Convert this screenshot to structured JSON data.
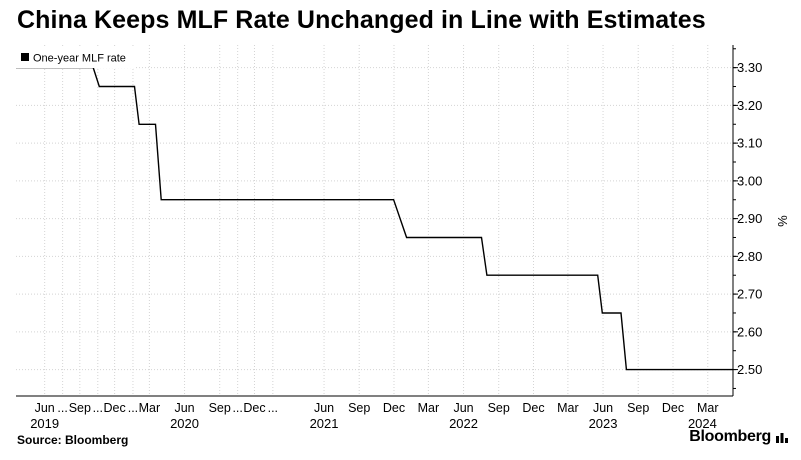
{
  "title": "China Keeps MLF Rate Unchanged in Line with Estimates",
  "source": "Source: Bloomberg",
  "brand": "Bloomberg",
  "brand_icon": "chart-bars-icon",
  "chart_data": {
    "type": "line",
    "title": "China Keeps MLF Rate Unchanged in Line with Estimates",
    "xlabel": "",
    "ylabel": "%",
    "ylim": [
      2.43,
      3.36
    ],
    "yticks": [
      2.5,
      2.6,
      2.7,
      2.8,
      2.9,
      3.0,
      3.1,
      3.2,
      3.3
    ],
    "ytick_labels": [
      "2.50",
      "2.60",
      "2.70",
      "2.80",
      "2.90",
      "3.00",
      "3.10",
      "3.20",
      "3.30"
    ],
    "xlim": [
      "2019-04-01",
      "2024-05-20"
    ],
    "grid": true,
    "legend_position": "top-left",
    "series": [
      {
        "name": "One-year MLF rate",
        "color": "#000000",
        "points": [
          [
            "2019-04-01",
            3.3
          ],
          [
            "2019-10-20",
            3.3
          ],
          [
            "2019-11-05",
            3.25
          ],
          [
            "2020-02-05",
            3.25
          ],
          [
            "2020-02-17",
            3.15
          ],
          [
            "2020-03-31",
            3.15
          ],
          [
            "2020-04-15",
            2.95
          ],
          [
            "2021-12-14",
            2.95
          ],
          [
            "2022-01-17",
            2.85
          ],
          [
            "2022-08-01",
            2.85
          ],
          [
            "2022-08-15",
            2.75
          ],
          [
            "2023-06-01",
            2.75
          ],
          [
            "2023-06-13",
            2.65
          ],
          [
            "2023-08-01",
            2.65
          ],
          [
            "2023-08-15",
            2.5
          ],
          [
            "2024-05-20",
            2.5
          ]
        ]
      }
    ],
    "x_tick_labels": [
      {
        "date": "2019-06-15",
        "label": "Jun"
      },
      {
        "date": "2019-08-01",
        "label": "..."
      },
      {
        "date": "2019-09-15",
        "label": "Sep"
      },
      {
        "date": "2019-11-01",
        "label": "..."
      },
      {
        "date": "2019-12-15",
        "label": "Dec"
      },
      {
        "date": "2020-02-01",
        "label": "..."
      },
      {
        "date": "2020-03-15",
        "label": "Mar"
      },
      {
        "date": "2020-06-15",
        "label": "Jun"
      },
      {
        "date": "2020-09-15",
        "label": "Sep"
      },
      {
        "date": "2020-11-01",
        "label": "..."
      },
      {
        "date": "2020-12-15",
        "label": "Dec"
      },
      {
        "date": "2021-02-01",
        "label": "..."
      },
      {
        "date": "2021-06-15",
        "label": "Jun"
      },
      {
        "date": "2021-09-15",
        "label": "Sep"
      },
      {
        "date": "2021-12-15",
        "label": "Dec"
      },
      {
        "date": "2022-03-15",
        "label": "Mar"
      },
      {
        "date": "2022-06-15",
        "label": "Jun"
      },
      {
        "date": "2022-09-15",
        "label": "Sep"
      },
      {
        "date": "2022-12-15",
        "label": "Dec"
      },
      {
        "date": "2023-03-15",
        "label": "Mar"
      },
      {
        "date": "2023-06-15",
        "label": "Jun"
      },
      {
        "date": "2023-09-15",
        "label": "Sep"
      },
      {
        "date": "2023-12-15",
        "label": "Dec"
      },
      {
        "date": "2024-03-15",
        "label": "Mar"
      }
    ],
    "year_labels": [
      {
        "date": "2019-06-15",
        "label": "2019"
      },
      {
        "date": "2020-06-15",
        "label": "2020"
      },
      {
        "date": "2021-06-15",
        "label": "2021"
      },
      {
        "date": "2022-06-15",
        "label": "2022"
      },
      {
        "date": "2023-06-15",
        "label": "2023"
      },
      {
        "date": "2024-03-01",
        "label": "2024"
      }
    ]
  }
}
